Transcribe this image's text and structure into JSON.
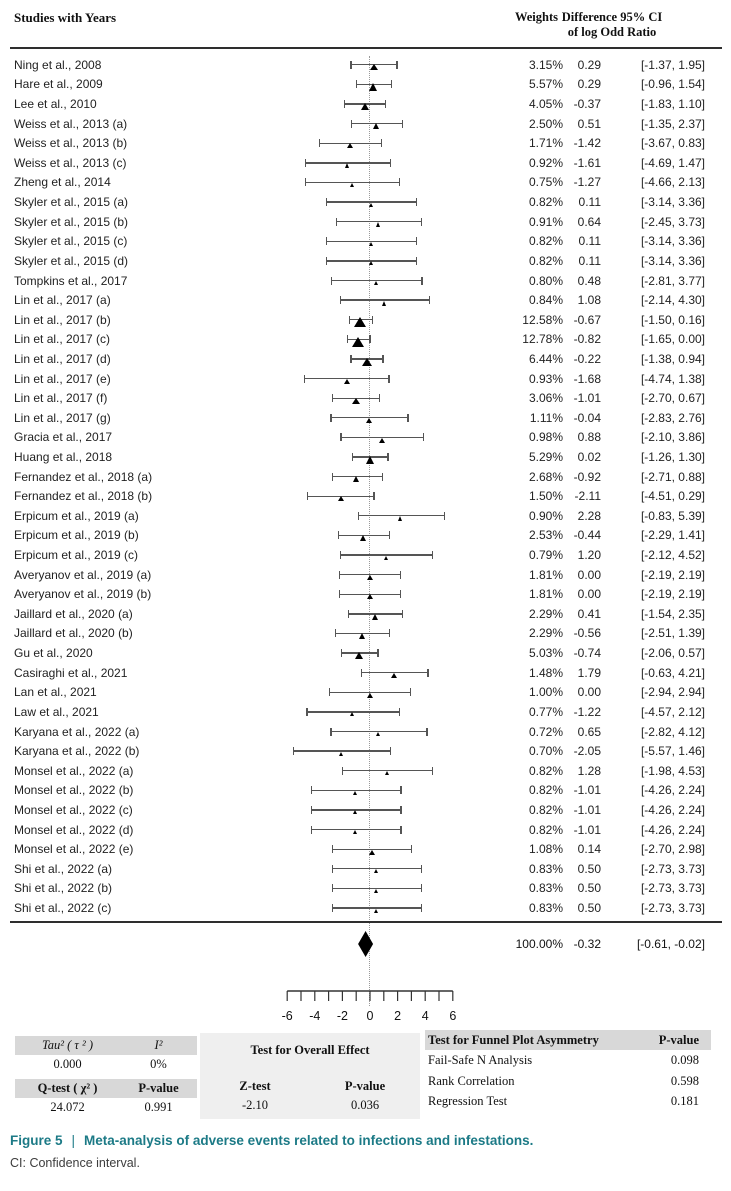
{
  "header": {
    "col_studies": "Studies with Years",
    "col_weights": "Weights",
    "col_difference_line1": "Difference 95% CI",
    "col_difference_line2": "of log Odd Ratio"
  },
  "chart_data": {
    "type": "scatter",
    "subtype": "forest-plot",
    "title": "Meta-analysis of adverse events related to infections and infestations",
    "effect_measure": "Difference of log Odd Ratio",
    "xlim": [
      -6,
      6
    ],
    "x_major_ticks": [
      -6,
      -4,
      -2,
      0,
      2,
      4,
      6
    ],
    "x_minor_tick_step": 1,
    "zero_reference_line": 0,
    "studies": [
      {
        "label": "Ning et al., 2008",
        "weight": "3.15%",
        "est": "0.29",
        "lo": "-1.37",
        "hi": "1.95"
      },
      {
        "label": "Hare et al., 2009",
        "weight": "5.57%",
        "est": "0.29",
        "lo": "-0.96",
        "hi": "1.54"
      },
      {
        "label": "Lee et al., 2010",
        "weight": "4.05%",
        "est": "-0.37",
        "lo": "-1.83",
        "hi": "1.10"
      },
      {
        "label": "Weiss et al., 2013 (a)",
        "weight": "2.50%",
        "est": "0.51",
        "lo": "-1.35",
        "hi": "2.37"
      },
      {
        "label": "Weiss et al., 2013 (b)",
        "weight": "1.71%",
        "est": "-1.42",
        "lo": "-3.67",
        "hi": "0.83"
      },
      {
        "label": "Weiss et al., 2013 (c)",
        "weight": "0.92%",
        "est": "-1.61",
        "lo": "-4.69",
        "hi": "1.47"
      },
      {
        "label": "Zheng et al., 2014",
        "weight": "0.75%",
        "est": "-1.27",
        "lo": "-4.66",
        "hi": "2.13"
      },
      {
        "label": "Skyler et al., 2015 (a)",
        "weight": "0.82%",
        "est": "0.11",
        "lo": "-3.14",
        "hi": "3.36"
      },
      {
        "label": "Skyler et al., 2015 (b)",
        "weight": "0.91%",
        "est": "0.64",
        "lo": "-2.45",
        "hi": "3.73"
      },
      {
        "label": "Skyler et al., 2015 (c)",
        "weight": "0.82%",
        "est": "0.11",
        "lo": "-3.14",
        "hi": "3.36"
      },
      {
        "label": "Skyler et al., 2015 (d)",
        "weight": "0.82%",
        "est": "0.11",
        "lo": "-3.14",
        "hi": "3.36"
      },
      {
        "label": "Tompkins et al., 2017",
        "weight": "0.80%",
        "est": "0.48",
        "lo": "-2.81",
        "hi": "3.77"
      },
      {
        "label": "Lin et al., 2017 (a)",
        "weight": "0.84%",
        "est": "1.08",
        "lo": "-2.14",
        "hi": "4.30"
      },
      {
        "label": "Lin et al., 2017 (b)",
        "weight": "12.58%",
        "est": "-0.67",
        "lo": "-1.50",
        "hi": "0.16"
      },
      {
        "label": "Lin et al., 2017 (c)",
        "weight": "12.78%",
        "est": "-0.82",
        "lo": "-1.65",
        "hi": "0.00"
      },
      {
        "label": "Lin et al., 2017 (d)",
        "weight": "6.44%",
        "est": "-0.22",
        "lo": "-1.38",
        "hi": "0.94"
      },
      {
        "label": "Lin et al., 2017 (e)",
        "weight": "0.93%",
        "est": "-1.68",
        "lo": "-4.74",
        "hi": "1.38"
      },
      {
        "label": "Lin et al., 2017 (f)",
        "weight": "3.06%",
        "est": "-1.01",
        "lo": "-2.70",
        "hi": "0.67"
      },
      {
        "label": "Lin et al., 2017 (g)",
        "weight": "1.11%",
        "est": "-0.04",
        "lo": "-2.83",
        "hi": "2.76"
      },
      {
        "label": "Gracia et al., 2017",
        "weight": "0.98%",
        "est": "0.88",
        "lo": "-2.10",
        "hi": "3.86"
      },
      {
        "label": "Huang et al., 2018",
        "weight": "5.29%",
        "est": "0.02",
        "lo": "-1.26",
        "hi": "1.30"
      },
      {
        "label": "Fernandez et al., 2018 (a)",
        "weight": "2.68%",
        "est": "-0.92",
        "lo": "-2.71",
        "hi": "0.88"
      },
      {
        "label": "Fernandez et al., 2018 (b)",
        "weight": "1.50%",
        "est": "-2.11",
        "lo": "-4.51",
        "hi": "0.29"
      },
      {
        "label": "Erpicum et al., 2019 (a)",
        "weight": "0.90%",
        "est": "2.28",
        "lo": "-0.83",
        "hi": "5.39"
      },
      {
        "label": "Erpicum et al., 2019 (b)",
        "weight": "2.53%",
        "est": "-0.44",
        "lo": "-2.29",
        "hi": "1.41"
      },
      {
        "label": "Erpicum et al., 2019 (c)",
        "weight": "0.79%",
        "est": "1.20",
        "lo": "-2.12",
        "hi": "4.52"
      },
      {
        "label": "Averyanov et al., 2019 (a)",
        "weight": "1.81%",
        "est": "0.00",
        "lo": "-2.19",
        "hi": "2.19"
      },
      {
        "label": "Averyanov et al., 2019 (b)",
        "weight": "1.81%",
        "est": "0.00",
        "lo": "-2.19",
        "hi": "2.19"
      },
      {
        "label": "Jaillard et al., 2020 (a)",
        "weight": "2.29%",
        "est": "0.41",
        "lo": "-1.54",
        "hi": "2.35"
      },
      {
        "label": "Jaillard et al., 2020 (b)",
        "weight": "2.29%",
        "est": "-0.56",
        "lo": "-2.51",
        "hi": "1.39"
      },
      {
        "label": "Gu et al., 2020",
        "weight": "5.03%",
        "est": "-0.74",
        "lo": "-2.06",
        "hi": "0.57"
      },
      {
        "label": "Casiraghi et al., 2021",
        "weight": "1.48%",
        "est": "1.79",
        "lo": "-0.63",
        "hi": "4.21"
      },
      {
        "label": "Lan et al., 2021",
        "weight": "1.00%",
        "est": "0.00",
        "lo": "-2.94",
        "hi": "2.94"
      },
      {
        "label": "Law et al., 2021",
        "weight": "0.77%",
        "est": "-1.22",
        "lo": "-4.57",
        "hi": "2.12"
      },
      {
        "label": "Karyana et al., 2022 (a)",
        "weight": "0.72%",
        "est": "0.65",
        "lo": "-2.82",
        "hi": "4.12"
      },
      {
        "label": "Karyana et al., 2022 (b)",
        "weight": "0.70%",
        "est": "-2.05",
        "lo": "-5.57",
        "hi": "1.46"
      },
      {
        "label": "Monsel et al., 2022 (a)",
        "weight": "0.82%",
        "est": "1.28",
        "lo": "-1.98",
        "hi": "4.53"
      },
      {
        "label": "Monsel et al., 2022 (b)",
        "weight": "0.82%",
        "est": "-1.01",
        "lo": "-4.26",
        "hi": "2.24"
      },
      {
        "label": "Monsel et al., 2022 (c)",
        "weight": "0.82%",
        "est": "-1.01",
        "lo": "-4.26",
        "hi": "2.24"
      },
      {
        "label": "Monsel et al., 2022 (d)",
        "weight": "0.82%",
        "est": "-1.01",
        "lo": "-4.26",
        "hi": "2.24"
      },
      {
        "label": "Monsel et al., 2022 (e)",
        "weight": "1.08%",
        "est": "0.14",
        "lo": "-2.70",
        "hi": "2.98"
      },
      {
        "label": "Shi et al., 2022 (a)",
        "weight": "0.83%",
        "est": "0.50",
        "lo": "-2.73",
        "hi": "3.73"
      },
      {
        "label": "Shi et al., 2022 (b)",
        "weight": "0.83%",
        "est": "0.50",
        "lo": "-2.73",
        "hi": "3.73"
      },
      {
        "label": "Shi et al., 2022 (c)",
        "weight": "0.83%",
        "est": "0.50",
        "lo": "-2.73",
        "hi": "3.73"
      }
    ],
    "summary": {
      "weight": "100.00%",
      "est": "-0.32",
      "lo": "-0.61",
      "hi": "-0.02"
    }
  },
  "stats": {
    "heterogeneity": {
      "tau2_label": "Tau² ( τ ² )",
      "i2_label": "I²",
      "tau2_value": "0.000",
      "i2_value": "0%",
      "q_label": "Q-test ( χ² )",
      "p_label": "P-value",
      "q_value": "24.072",
      "p_value": "0.991"
    },
    "overall_effect": {
      "title": "Test for Overall Effect",
      "z_label": "Z-test",
      "p_label": "P-value",
      "z_value": "-2.10",
      "p_value": "0.036"
    },
    "funnel": {
      "title": "Test for Funnel Plot Asymmetry",
      "p_label": "P-value",
      "rows": [
        {
          "label": "Fail-Safe N Analysis",
          "value": "0.098"
        },
        {
          "label": "Rank Correlation",
          "value": "0.598"
        },
        {
          "label": "Regression Test",
          "value": "0.181"
        }
      ]
    }
  },
  "caption": {
    "figure_label": "Figure 5",
    "separator": "|",
    "text": "Meta-analysis of adverse events related to infections and infestations.",
    "note": "CI: Confidence interval."
  },
  "colors": {
    "caption_teal": "#1c7a86",
    "marker_black": "#000000",
    "whisker_gray": "#555555",
    "table_header_gray": "#d8d8d8",
    "table_block_gray": "#efefef"
  }
}
